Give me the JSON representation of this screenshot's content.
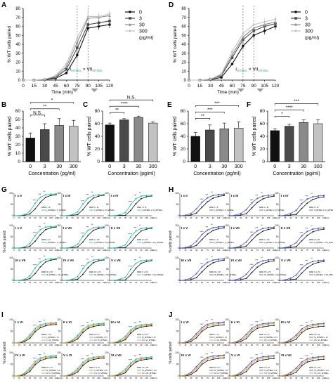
{
  "figure": {
    "panel_letters": [
      "A",
      "B",
      "C",
      "D",
      "E",
      "F",
      "G",
      "H",
      "I",
      "J"
    ],
    "legend_items": [
      "0",
      "3",
      "30",
      "300"
    ],
    "legend_unit": "(pg/ml)",
    "colors": {
      "c0": "#111111",
      "c3": "#4a4a4a",
      "c30": "#8a8a8a",
      "c300": "#c2c2c2",
      "green": "#2ab7a0",
      "blue": "#3d54b6",
      "orange": "#e09020",
      "axis": "#000000"
    }
  },
  "chart_data": [
    {
      "panel": "A",
      "type": "line",
      "xlabel": "Time (min)",
      "ylabel": "% WT cells paired",
      "x": [
        0,
        15,
        30,
        45,
        60,
        75,
        90,
        105,
        120
      ],
      "x_ticks": [
        "0",
        "15",
        "30",
        "45",
        "60",
        "75",
        "90",
        "105",
        "120"
      ],
      "y_ticks": [
        "0",
        "10",
        "20",
        "30",
        "40",
        "50",
        "60",
        "70",
        "80"
      ],
      "ylim": [
        0,
        80
      ],
      "series": [
        {
          "name": "0",
          "values": [
            0,
            0,
            0.5,
            2,
            8,
            28,
            58,
            60,
            62
          ]
        },
        {
          "name": "3",
          "values": [
            0,
            0,
            0.5,
            3,
            12,
            36,
            62,
            64,
            66
          ]
        },
        {
          "name": "30",
          "values": [
            0,
            0,
            1,
            4,
            15,
            42,
            69,
            70,
            72
          ]
        },
        {
          "name": "300",
          "values": [
            0,
            0,
            1,
            5,
            18,
            47,
            71,
            71,
            74
          ]
        }
      ],
      "annotation": {
        "prefix": "I",
        "sub1": "MTMbc",
        "mid": " × VII",
        "sub2": "MTMbc"
      }
    },
    {
      "panel": "D",
      "type": "line",
      "xlabel": "Time (min)",
      "ylabel": "% WT cells paired",
      "x": [
        0,
        15,
        30,
        45,
        60,
        75,
        90,
        105,
        120
      ],
      "x_ticks": [
        "0",
        "15",
        "30",
        "45",
        "60",
        "75",
        "90",
        "105",
        "120"
      ],
      "y_ticks": [
        "0",
        "10",
        "20",
        "30",
        "40",
        "50",
        "60",
        "70",
        "80"
      ],
      "ylim": [
        0,
        80
      ],
      "series": [
        {
          "name": "0",
          "values": [
            0,
            0,
            0.5,
            3,
            18,
            38,
            50,
            55,
            60
          ]
        },
        {
          "name": "3",
          "values": [
            0,
            0,
            1,
            5,
            25,
            45,
            55,
            60,
            63
          ]
        },
        {
          "name": "30",
          "values": [
            0,
            0,
            1,
            6,
            28,
            48,
            58,
            62,
            65
          ]
        },
        {
          "name": "300",
          "values": [
            0,
            0,
            1,
            7,
            32,
            52,
            62,
            65,
            68
          ]
        }
      ],
      "annotation": {
        "prefix": "I",
        "sub1": "MTMbc",
        "mid": " × VII",
        "sub2": "MTMbc"
      }
    },
    {
      "panel": "B",
      "type": "bar",
      "xlabel": "Concentration (pg/ml)",
      "ylabel": "% WT cells paired",
      "categories": [
        "0",
        "3",
        "30",
        "300"
      ],
      "values": [
        28,
        38,
        43,
        42
      ],
      "errors": [
        6,
        7,
        8,
        7
      ],
      "y_ticks": [
        "0",
        "10",
        "20",
        "30",
        "40",
        "50",
        "60"
      ],
      "ylim": [
        0,
        60
      ],
      "significance": [
        {
          "from": 0,
          "to": 1,
          "label": "N.S."
        },
        {
          "from": 0,
          "to": 2,
          "label": "**"
        },
        {
          "from": 0,
          "to": 3,
          "label": "*"
        }
      ]
    },
    {
      "panel": "C",
      "type": "bar",
      "xlabel": "Concentration (pg/ml)",
      "ylabel": "% WT cells paired",
      "categories": [
        "0",
        "3",
        "30",
        "300"
      ],
      "values": [
        58,
        66,
        70,
        61
      ],
      "errors": [
        3,
        2,
        2,
        2
      ],
      "y_ticks": [
        "0",
        "20",
        "40",
        "60",
        "80"
      ],
      "ylim": [
        0,
        80
      ],
      "significance": [
        {
          "from": 0,
          "to": 1,
          "label": "**"
        },
        {
          "from": 0,
          "to": 2,
          "label": "****"
        },
        {
          "from": 0,
          "to": 3,
          "label": "N.S."
        }
      ]
    },
    {
      "panel": "E",
      "type": "bar",
      "xlabel": "Concentration (pg/ml)",
      "ylabel": "% WT cells paired",
      "categories": [
        "0",
        "3",
        "30",
        "300"
      ],
      "values": [
        40,
        50,
        52,
        53
      ],
      "errors": [
        6,
        8,
        9,
        10
      ],
      "y_ticks": [
        "0",
        "20",
        "40",
        "60",
        "80"
      ],
      "ylim": [
        0,
        80
      ],
      "significance": [
        {
          "from": 0,
          "to": 1,
          "label": "**"
        },
        {
          "from": 0,
          "to": 2,
          "label": "***"
        },
        {
          "from": 0,
          "to": 3,
          "label": "***"
        }
      ]
    },
    {
      "panel": "F",
      "type": "bar",
      "xlabel": "Concentration (pg/ml)",
      "ylabel": "% WT cells paired",
      "categories": [
        "0",
        "3",
        "30",
        "300"
      ],
      "values": [
        49,
        56,
        62,
        60
      ],
      "errors": [
        3,
        3,
        4,
        6
      ],
      "y_ticks": [
        "0",
        "20",
        "40",
        "60",
        "80"
      ],
      "ylim": [
        0,
        80
      ],
      "significance": [
        {
          "from": 0,
          "to": 1,
          "label": "*"
        },
        {
          "from": 0,
          "to": 2,
          "label": "****"
        },
        {
          "from": 0,
          "to": 3,
          "label": "***"
        }
      ]
    },
    {
      "panel": "G",
      "type": "line",
      "ylabel": "% cells paired",
      "x": [
        0,
        15,
        30,
        45,
        60,
        75,
        90,
        105,
        120
      ],
      "x_ticks": [
        "0",
        "15",
        "30",
        "45",
        "60",
        "75",
        "90",
        "105",
        "120"
      ],
      "x_unit": "(min)",
      "ylim": [
        0,
        100
      ],
      "y_ticks": [
        "0",
        "50",
        "100"
      ],
      "subplots": [
        {
          "title": "I x II",
          "series": [
            "I x II",
            "I_MTMbc x II_MTMbc"
          ]
        },
        {
          "title": "I x III",
          "series": [
            "I x III",
            "I_MTMbc x III_MTMbc"
          ]
        },
        {
          "title": "I x IV",
          "series": [
            "I x IV",
            "I_MTMbc x IV_MTMbc"
          ]
        },
        {
          "title": "I x V",
          "series": [
            "I x V",
            "I_MTMbc x V_MTMbc"
          ]
        },
        {
          "title": "I x VII",
          "series": [
            "I x VII",
            "I_MTMbc x VII_MTMbc"
          ]
        },
        {
          "title": "II x VII",
          "series": [
            "II x VII",
            "II_MTMbc x VII_MTMbc"
          ]
        },
        {
          "title": "III x VII",
          "series": [
            "III x VII",
            "III_MTMbc x VII_MTMbc"
          ]
        },
        {
          "title": "IV x VII",
          "series": [
            "IV x VII",
            "IV_MTMbc x VII_MTMbc"
          ]
        },
        {
          "title": "V x VII",
          "series": [
            "V x VII",
            "V_MTMbc x VII_MTMbc"
          ]
        }
      ],
      "base_values": [
        0,
        0,
        2,
        8,
        30,
        60,
        82,
        90,
        94
      ],
      "treated_values": [
        0,
        0,
        5,
        20,
        55,
        82,
        93,
        96,
        97
      ]
    },
    {
      "panel": "H",
      "type": "line",
      "ylabel": "% cells paired",
      "x": [
        0,
        15,
        30,
        45,
        60,
        75,
        90,
        105,
        120
      ],
      "x_ticks": [
        "0",
        "15",
        "30",
        "45",
        "60",
        "75",
        "90",
        "105",
        "120"
      ],
      "x_unit": "(min)",
      "ylim": [
        0,
        100
      ],
      "y_ticks": [
        "0",
        "50",
        "100"
      ],
      "subplots": [
        {
          "title": "I x II",
          "series": [
            "I x II",
            "I_MTMbc x II_MTMbc"
          ]
        },
        {
          "title": "I x III",
          "series": [
            "I x III",
            "I_MTMbc x III_MTMbc"
          ]
        },
        {
          "title": "I x IV",
          "series": [
            "I x IV",
            "I_MTMbc x IV_MTMbc"
          ]
        },
        {
          "title": "I x V",
          "series": [
            "I x V",
            "I_MTMbc x V_MTMbc"
          ]
        },
        {
          "title": "I x VII",
          "series": [
            "I x VII",
            "I_MTMbc x VII_MTMbc"
          ]
        },
        {
          "title": "II x VII",
          "series": [
            "II x VII",
            "II_MTMbc x VII_MTMbc"
          ]
        },
        {
          "title": "III x VII",
          "series": [
            "III x VII",
            "III_MTMbc x VII_MTMbc"
          ]
        },
        {
          "title": "IV x VII",
          "series": [
            "IV x VII",
            "IV_MTMbc x VII_MTMbc"
          ]
        },
        {
          "title": "V x VII",
          "series": [
            "V x VII",
            "V_MTMbc x VII_MTMbc"
          ]
        }
      ],
      "base_values": [
        0,
        0,
        3,
        12,
        38,
        62,
        78,
        86,
        90
      ],
      "treated_values": [
        0,
        2,
        10,
        30,
        60,
        80,
        90,
        94,
        96
      ]
    },
    {
      "panel": "I",
      "type": "line",
      "ylabel": "% cells paired",
      "x": [
        0,
        15,
        30,
        45,
        60,
        75,
        90,
        105,
        120
      ],
      "x_ticks": [
        "0",
        "15",
        "30",
        "45",
        "60",
        "75",
        "90",
        "105",
        "120"
      ],
      "x_unit": "(min)",
      "ylim": [
        0,
        100
      ],
      "y_ticks": [
        "0",
        "50",
        "100"
      ],
      "subplots": [
        {
          "title": "I x VI",
          "series": [
            "I x VI",
            "I_MTMbc x VI",
            "I x VI_MTMbc"
          ]
        },
        {
          "title": "II x VI",
          "series": [
            "II x VI",
            "II_MTMbc x VI",
            "II x VI_MTMbc"
          ]
        },
        {
          "title": "III x VI",
          "series": [
            "III x VI",
            "III_MTMbc x VI",
            "III x VI_MTMbc"
          ]
        },
        {
          "title": "IV x VI",
          "series": [
            "IV x VI",
            "IV_MTMbc x VI",
            "IV x VI_MTMbc"
          ]
        },
        {
          "title": "V x VI",
          "series": [
            "V x VI",
            "V_MTMbc x VI",
            "V x VI_MTMbc"
          ]
        },
        {
          "title": "VI x VII",
          "series": [
            "VI x VII",
            "VI_MTMbc x VII",
            "VI x VII_MTMbc"
          ]
        }
      ],
      "base_values": [
        0,
        0,
        5,
        20,
        48,
        66,
        74,
        78,
        80
      ],
      "treated_values": [
        0,
        2,
        12,
        35,
        62,
        78,
        84,
        86,
        88
      ],
      "third_values": [
        0,
        1,
        8,
        28,
        55,
        72,
        80,
        83,
        85
      ]
    },
    {
      "panel": "J",
      "type": "line",
      "ylabel": "% cells paired",
      "x": [
        0,
        15,
        30,
        45,
        60,
        75,
        90,
        105,
        120
      ],
      "x_ticks": [
        "0",
        "15",
        "30",
        "45",
        "60",
        "75",
        "90",
        "105",
        "120"
      ],
      "x_unit": "(min)",
      "ylim": [
        0,
        100
      ],
      "y_ticks": [
        "0",
        "50",
        "100"
      ],
      "subplots": [
        {
          "title": "I x VI",
          "series": [
            "I x VI",
            "I_MTMbc x VI",
            "I x VI_MTMbc"
          ]
        },
        {
          "title": "II x VI",
          "series": [
            "II x VI",
            "II_MTMbc x VI",
            "II x VI_MTMbc"
          ]
        },
        {
          "title": "III x VI",
          "series": [
            "III x VI",
            "III_MTMbc x VI",
            "III x VI_MTMbc"
          ]
        },
        {
          "title": "IV x VI",
          "series": [
            "IV x VI",
            "IV_MTMbc x VI",
            "IV x VI_MTMbc"
          ]
        },
        {
          "title": "V x VI",
          "series": [
            "V x VI",
            "V_MTMbc x VI",
            "V x VI_MTMbc"
          ]
        },
        {
          "title": "VI x VII",
          "series": [
            "VI x VII",
            "VI_MTMbc x VII",
            "VI x VII_MTMbc"
          ]
        }
      ],
      "base_values": [
        0,
        0,
        6,
        22,
        50,
        66,
        72,
        76,
        78
      ],
      "treated_values": [
        0,
        3,
        15,
        40,
        66,
        80,
        86,
        88,
        90
      ],
      "third_values": [
        0,
        2,
        10,
        32,
        58,
        74,
        80,
        84,
        86
      ]
    }
  ]
}
